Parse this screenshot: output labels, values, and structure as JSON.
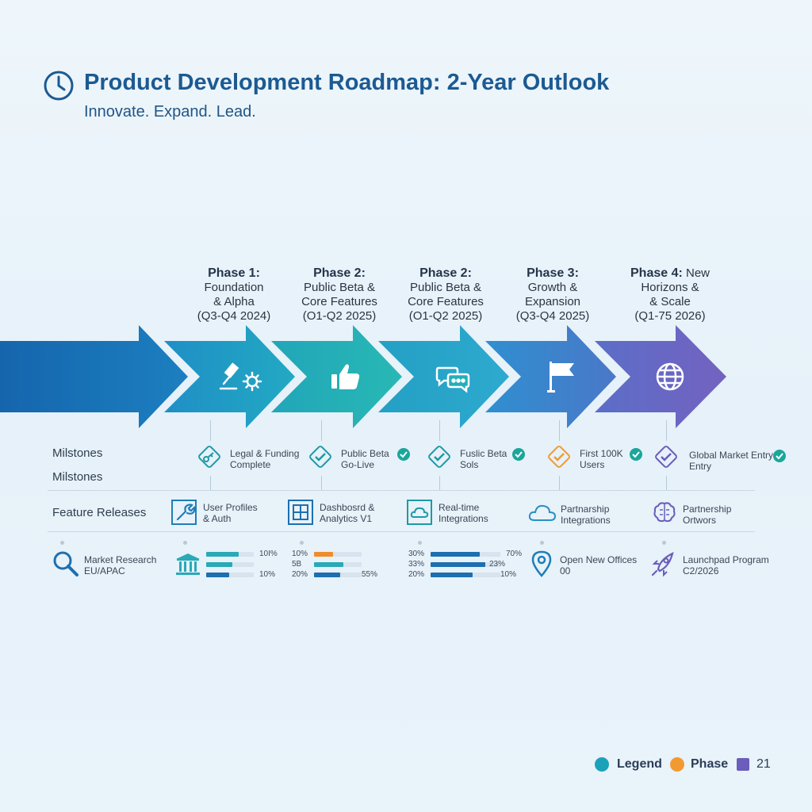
{
  "header": {
    "title": "Product Development Roadmap: 2-Year Outlook",
    "subtitle": "Innovate. Expand. Lead."
  },
  "phases": [
    {
      "heading": "Phase 1:",
      "line1": "Foundation",
      "line2": "& Alpha",
      "period": "(Q3-Q4 2024)",
      "icon": "gavel-gear-icon"
    },
    {
      "heading": "Phase 2:",
      "line1": "Public Beta &",
      "line2": "Core Features",
      "period": "(O1-Q2 2025)",
      "icon": "thumbs-up-icon"
    },
    {
      "heading": "Phase 2:",
      "line1": "Public Beta &",
      "line2": "Core Features",
      "period": "(O1-Q2 2025)",
      "icon": "chat-bubbles-icon"
    },
    {
      "heading": "Phase 3:",
      "line1": "Growth &",
      "line2": "Expansion",
      "period": "(Q3-Q4 2025)",
      "icon": "flag-icon"
    },
    {
      "heading": "Phase 4:",
      "heading_extra": "New",
      "line1": "Horizons &",
      "line2": "& Scale",
      "period": "(Q1-75 2026)",
      "icon": "globe-icon"
    }
  ],
  "rows": {
    "milestones_label_1": "Milstones",
    "milestones_label_2": "Milstones",
    "features_label": "Feature Releases"
  },
  "milestones": [
    {
      "line1": "Legal & Funding",
      "line2": "Complete",
      "icon": "key-diamond-icon"
    },
    {
      "line1": "Public Beta",
      "line2": "Go-Live",
      "icon": "check-diamond-icon"
    },
    {
      "line1": "Fuslic Beta",
      "line2": "Sols",
      "icon": "check-diamond-icon"
    },
    {
      "line1": "First 100K",
      "line2": "Users",
      "icon": "check-diamond-icon"
    },
    {
      "line1": "Global Market Entry",
      "line2": "Entry",
      "icon": "check-diamond-icon"
    }
  ],
  "features": [
    {
      "line1": "User Profiles",
      "line2": "& Auth",
      "icon": "wrench-icon"
    },
    {
      "line1": "Dashbosrd &",
      "line2": "Analytics V1",
      "icon": "dashboard-grid-icon"
    },
    {
      "line1": "Real-time",
      "line2": "Integrations",
      "icon": "cloud-window-icon"
    },
    {
      "line1": "Partnarship",
      "line2": "Integrations",
      "icon": "cloud-icon"
    },
    {
      "line1": "Partnership",
      "line2": "Ortwors",
      "icon": "brain-icon"
    }
  ],
  "bottom": {
    "market": {
      "line1": "Market Research",
      "line2": "EU/APAC",
      "icon": "magnifier-icon"
    },
    "bank_icon": "bank-icon",
    "bars_group1": [
      {
        "label_right": "10I%",
        "fill": 0.68,
        "color": "#2aa9b6"
      },
      {
        "label_right": "",
        "fill": 0.55,
        "color": "#2aa9b6"
      },
      {
        "label_right": "10%",
        "fill": 0.48,
        "color": "#1e6fb0"
      }
    ],
    "bars_group2": [
      {
        "label_left": "10%",
        "fill": 0.4,
        "color": "#f08c2b"
      },
      {
        "label_left": "5B",
        "fill": 0.62,
        "color": "#2aa9b6"
      },
      {
        "label_left": "20%",
        "label_right": "55%",
        "fill": 0.55,
        "color": "#1e6fb0"
      }
    ],
    "bars_group3": [
      {
        "label_left": "30%",
        "label_right": "70%",
        "fill": 0.7,
        "color": "#1e6fb0"
      },
      {
        "label_left": "33%",
        "label_right": "23%",
        "fill": 0.78,
        "color": "#1e6fb0"
      },
      {
        "label_left": "20%",
        "label_right": "10%",
        "fill": 0.6,
        "color": "#1e6fb0"
      }
    ],
    "offices": {
      "line1": "Open New Offices",
      "line2": "00",
      "icon": "location-pin-icon"
    },
    "launchpad": {
      "line1": "Launchpad Program",
      "line2": "C2/2026",
      "icon": "rocket-icon"
    }
  },
  "legend": [
    {
      "label": "Legend",
      "color": "#1ba2b9",
      "shape": "circle"
    },
    {
      "label": "Phase",
      "color": "#f29a32",
      "shape": "circle"
    },
    {
      "label": "21",
      "color": "#6a5dbb",
      "shape": "square"
    }
  ],
  "colors": {
    "chevron_1": "#1a73ba",
    "chevron_2": "#1e9fc4",
    "chevron_3": "#22b3ba",
    "chevron_4": "#26a9c9",
    "chevron_5": "#3f7bc8",
    "chevron_6": "#6660c4"
  }
}
